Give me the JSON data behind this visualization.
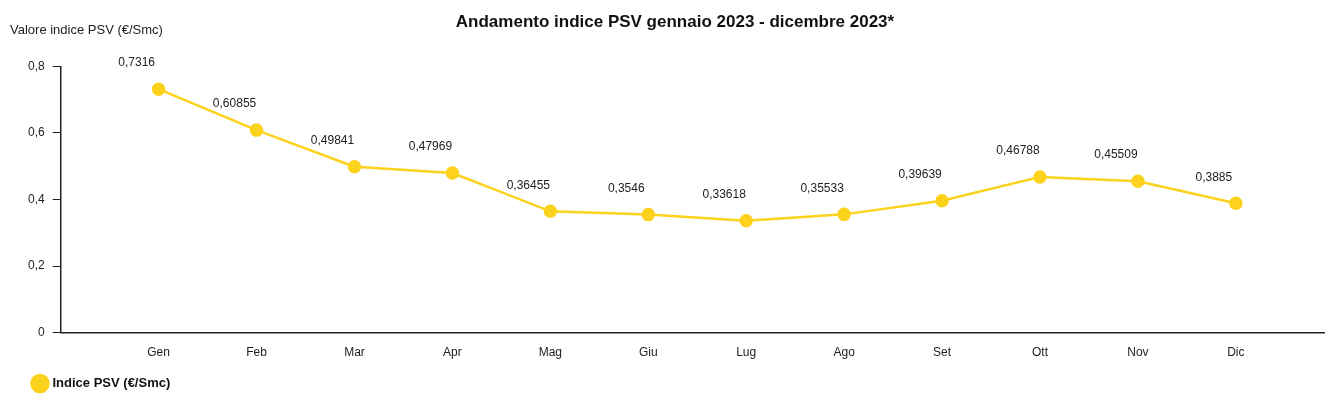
{
  "chart_data": {
    "type": "line",
    "title": "Andamento indice PSV gennaio 2023 - dicembre 2023*",
    "ylabel": "Valore indice PSV (€/Smc)",
    "categories": [
      "Gen",
      "Feb",
      "Mar",
      "Apr",
      "Mag",
      "Giu",
      "Lug",
      "Ago",
      "Set",
      "Ott",
      "Nov",
      "Dic"
    ],
    "series": [
      {
        "name": "Indice PSV (€/Smc)",
        "color": "#fcd21c",
        "values": [
          0.7316,
          0.60855,
          0.49841,
          0.47969,
          0.36455,
          0.3546,
          0.33618,
          0.35533,
          0.39639,
          0.46788,
          0.45509,
          0.3885
        ],
        "value_labels": [
          "0,7316",
          "0,60855",
          "0,49841",
          "0,47969",
          "0,36455",
          "0,3546",
          "0,33618",
          "0,35533",
          "0,39639",
          "0,46788",
          "0,45509",
          "0,3885"
        ]
      }
    ],
    "ylim": [
      0,
      0.8
    ],
    "yticks": [
      {
        "value": 0,
        "label": "0"
      },
      {
        "value": 0.2,
        "label": "0,2"
      },
      {
        "value": 0.4,
        "label": "0,4"
      },
      {
        "value": 0.6,
        "label": "0,6"
      },
      {
        "value": 0.8,
        "label": "0,8"
      }
    ],
    "grid": false,
    "legend": "bottom left",
    "marker": "circle",
    "line_style": "solid"
  }
}
